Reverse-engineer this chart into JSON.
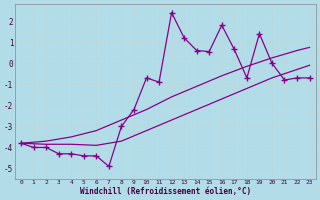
{
  "background_color": "#b2dde8",
  "grid_color": "#c0dde0",
  "line_color": "#880088",
  "xlim_min": -0.5,
  "xlim_max": 23.5,
  "ylim_min": -5.5,
  "ylim_max": 2.8,
  "xticks": [
    0,
    1,
    2,
    3,
    4,
    5,
    6,
    7,
    8,
    9,
    10,
    11,
    12,
    13,
    14,
    15,
    16,
    17,
    18,
    19,
    20,
    21,
    22,
    23
  ],
  "yticks": [
    -5,
    -4,
    -3,
    -2,
    -1,
    0,
    1,
    2
  ],
  "line1_x": [
    0,
    1,
    2,
    3,
    4,
    5,
    6,
    7,
    8,
    9,
    10,
    11,
    12,
    13,
    14,
    15,
    16,
    17,
    18,
    19,
    20,
    21,
    22,
    23
  ],
  "line1_y": [
    -3.8,
    -4.0,
    -4.0,
    -4.3,
    -4.3,
    -4.4,
    -4.4,
    -4.9,
    -3.0,
    -2.2,
    -0.7,
    -0.9,
    2.4,
    1.2,
    0.6,
    0.55,
    1.8,
    0.65,
    -0.7,
    1.4,
    0.0,
    -0.8,
    -0.7,
    -0.7
  ],
  "line2_x": [
    0,
    23
  ],
  "line2_y": [
    -3.8,
    -0.7
  ],
  "line3_x": [
    0,
    23
  ],
  "line3_y": [
    -3.8,
    -0.7
  ],
  "line2_curve_x": [
    0,
    2,
    4,
    6,
    8,
    10,
    12,
    14,
    16,
    18,
    20,
    22,
    23
  ],
  "line2_curve_y": [
    -3.8,
    -3.7,
    -3.5,
    -3.2,
    -2.7,
    -2.2,
    -1.6,
    -1.1,
    -0.6,
    -0.15,
    0.25,
    0.6,
    0.75
  ],
  "line3_curve_x": [
    0,
    2,
    4,
    6,
    8,
    10,
    12,
    14,
    16,
    18,
    20,
    22,
    23
  ],
  "line3_curve_y": [
    -3.8,
    -3.85,
    -3.85,
    -3.9,
    -3.7,
    -3.2,
    -2.7,
    -2.2,
    -1.7,
    -1.2,
    -0.7,
    -0.3,
    -0.1
  ],
  "xlabel": "Windchill (Refroidissement éolien,°C)"
}
